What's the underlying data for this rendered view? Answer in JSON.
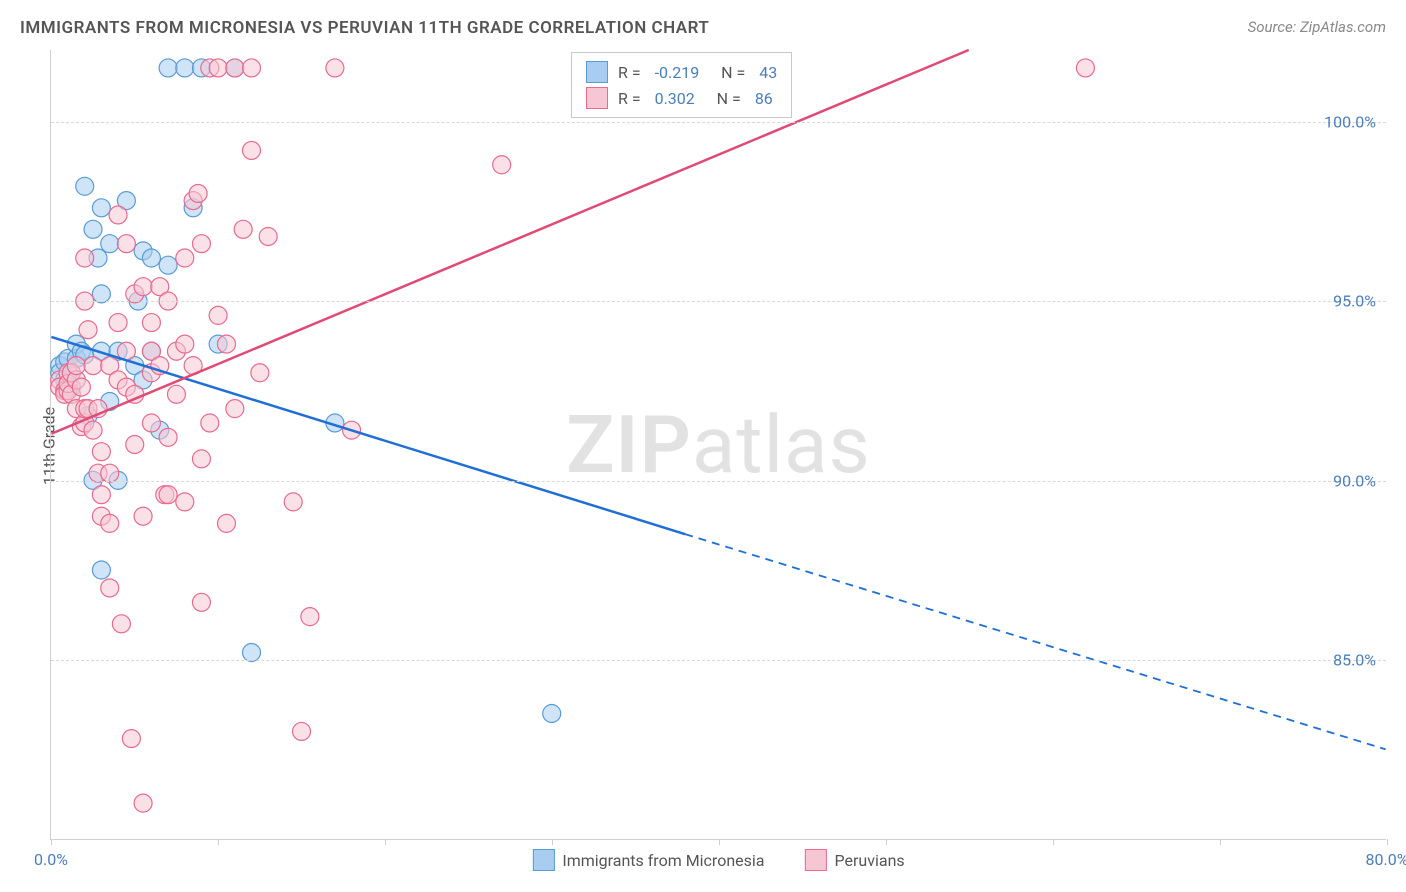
{
  "title": "IMMIGRANTS FROM MICRONESIA VS PERUVIAN 11TH GRADE CORRELATION CHART",
  "source": "Source: ZipAtlas.com",
  "y_axis_label": "11th Grade",
  "watermark_bold": "ZIP",
  "watermark_rest": "atlas",
  "chart": {
    "type": "scatter-with-regression",
    "x_range": [
      0,
      80
    ],
    "y_range": [
      80,
      102
    ],
    "y_ticks": [
      85.0,
      90.0,
      95.0,
      100.0
    ],
    "y_tick_labels": [
      "85.0%",
      "90.0%",
      "95.0%",
      "100.0%"
    ],
    "x_ticks": [
      0,
      10,
      20,
      30,
      40,
      50,
      60,
      70,
      80
    ],
    "x_tick_labels": {
      "0": "0.0%",
      "80": "80.0%"
    },
    "series": [
      {
        "id": "micronesia",
        "label": "Immigrants from Micronesia",
        "fill": "#a8cdf0",
        "stroke": "#5b9bd5",
        "line_stroke": "#1f6fd4",
        "r_value": "-0.219",
        "n_value": "43",
        "regression": {
          "x1": 0,
          "y1": 94.0,
          "x2": 38,
          "y2": 88.5,
          "dashed_x2": 80,
          "dashed_y2": 82.5
        },
        "points": [
          [
            0.5,
            93.2
          ],
          [
            0.5,
            93.0
          ],
          [
            0.8,
            92.8
          ],
          [
            0.8,
            93.3
          ],
          [
            1.0,
            93.4
          ],
          [
            1.0,
            92.5
          ],
          [
            1.2,
            92.6
          ],
          [
            1.2,
            93.0
          ],
          [
            1.5,
            93.4
          ],
          [
            1.5,
            93.8
          ],
          [
            1.8,
            93.6
          ],
          [
            2.0,
            93.5
          ],
          [
            2.0,
            98.2
          ],
          [
            2.5,
            97.0
          ],
          [
            2.2,
            91.8
          ],
          [
            2.5,
            90.0
          ],
          [
            2.8,
            96.2
          ],
          [
            3.0,
            97.6
          ],
          [
            3.0,
            95.2
          ],
          [
            3.0,
            93.6
          ],
          [
            3.5,
            92.2
          ],
          [
            3.5,
            96.6
          ],
          [
            4.0,
            93.6
          ],
          [
            4.0,
            90.0
          ],
          [
            4.5,
            97.8
          ],
          [
            5.0,
            93.2
          ],
          [
            5.2,
            95.0
          ],
          [
            5.5,
            92.8
          ],
          [
            5.5,
            96.4
          ],
          [
            6.0,
            93.6
          ],
          [
            6.0,
            96.2
          ],
          [
            6.5,
            91.4
          ],
          [
            7.0,
            96.0
          ],
          [
            7.0,
            101.5
          ],
          [
            8.0,
            101.5
          ],
          [
            8.5,
            97.6
          ],
          [
            9.0,
            101.5
          ],
          [
            10.0,
            93.8
          ],
          [
            11.0,
            101.5
          ],
          [
            12.0,
            85.2
          ],
          [
            17.0,
            91.6
          ],
          [
            30.0,
            83.5
          ],
          [
            3.0,
            87.5
          ]
        ]
      },
      {
        "id": "peruvians",
        "label": "Peruvians",
        "fill": "#f6c6d4",
        "stroke": "#e86a8f",
        "line_stroke": "#e04a75",
        "r_value": "0.302",
        "n_value": "86",
        "regression": {
          "x1": 0,
          "y1": 91.3,
          "x2": 55,
          "y2": 102.0
        },
        "points": [
          [
            0.5,
            92.8
          ],
          [
            0.5,
            92.6
          ],
          [
            0.8,
            92.5
          ],
          [
            0.8,
            92.4
          ],
          [
            1.0,
            92.5
          ],
          [
            1.0,
            93.0
          ],
          [
            1.0,
            92.7
          ],
          [
            1.2,
            93.0
          ],
          [
            1.2,
            92.4
          ],
          [
            1.5,
            92.0
          ],
          [
            1.5,
            92.8
          ],
          [
            1.5,
            93.2
          ],
          [
            1.8,
            91.5
          ],
          [
            1.8,
            92.6
          ],
          [
            2.0,
            91.6
          ],
          [
            2.0,
            92.0
          ],
          [
            2.0,
            95.0
          ],
          [
            2.0,
            96.2
          ],
          [
            2.2,
            94.2
          ],
          [
            2.2,
            92.0
          ],
          [
            2.5,
            93.2
          ],
          [
            2.5,
            91.4
          ],
          [
            2.8,
            92.0
          ],
          [
            2.8,
            90.2
          ],
          [
            3.0,
            90.8
          ],
          [
            3.0,
            89.6
          ],
          [
            3.0,
            89.0
          ],
          [
            3.5,
            88.8
          ],
          [
            3.5,
            87.0
          ],
          [
            3.5,
            90.2
          ],
          [
            3.5,
            93.2
          ],
          [
            4.0,
            94.4
          ],
          [
            4.0,
            97.4
          ],
          [
            4.0,
            92.8
          ],
          [
            4.2,
            86.0
          ],
          [
            4.5,
            92.6
          ],
          [
            4.5,
            93.6
          ],
          [
            4.5,
            96.6
          ],
          [
            4.8,
            82.8
          ],
          [
            5.0,
            92.4
          ],
          [
            5.0,
            91.0
          ],
          [
            5.0,
            95.2
          ],
          [
            5.5,
            95.4
          ],
          [
            5.5,
            89.0
          ],
          [
            5.5,
            81.0
          ],
          [
            6.0,
            91.6
          ],
          [
            6.0,
            94.4
          ],
          [
            6.0,
            93.6
          ],
          [
            6.0,
            93.0
          ],
          [
            6.5,
            95.4
          ],
          [
            6.5,
            93.2
          ],
          [
            6.8,
            89.6
          ],
          [
            7.0,
            95.0
          ],
          [
            7.0,
            89.6
          ],
          [
            7.0,
            91.2
          ],
          [
            7.5,
            92.4
          ],
          [
            7.5,
            93.6
          ],
          [
            8.0,
            96.2
          ],
          [
            8.0,
            93.8
          ],
          [
            8.0,
            89.4
          ],
          [
            8.5,
            97.8
          ],
          [
            8.5,
            93.2
          ],
          [
            8.8,
            98.0
          ],
          [
            9.0,
            96.6
          ],
          [
            9.0,
            90.6
          ],
          [
            9.0,
            86.6
          ],
          [
            9.5,
            91.6
          ],
          [
            9.5,
            101.5
          ],
          [
            10.0,
            94.6
          ],
          [
            10.0,
            101.5
          ],
          [
            10.5,
            88.8
          ],
          [
            10.5,
            93.8
          ],
          [
            11.0,
            92.0
          ],
          [
            11.0,
            101.5
          ],
          [
            11.5,
            97.0
          ],
          [
            12.0,
            101.5
          ],
          [
            12.0,
            99.2
          ],
          [
            12.5,
            93.0
          ],
          [
            13.0,
            96.8
          ],
          [
            14.5,
            89.4
          ],
          [
            15.0,
            83.0
          ],
          [
            15.5,
            86.2
          ],
          [
            17.0,
            101.5
          ],
          [
            18.0,
            91.4
          ],
          [
            27.0,
            98.8
          ],
          [
            62.0,
            101.5
          ]
        ]
      }
    ],
    "marker_radius": 9,
    "marker_opacity": 0.55,
    "line_width": 2.5,
    "grid_color": "#d8d8d8",
    "background": "#ffffff",
    "axis_color": "#d0d0d0",
    "tick_label_color": "#4a7ebb"
  },
  "legend_box": {
    "r_label": "R =",
    "n_label": "N ="
  }
}
